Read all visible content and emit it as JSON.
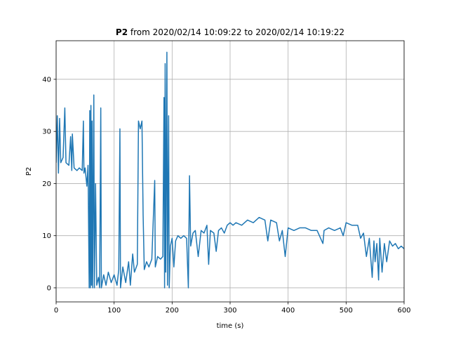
{
  "chart_data": {
    "type": "line",
    "title": {
      "bold": "P2",
      "text": "from 2020/02/14 10:09:22 to 2020/02/14 10:19:22"
    },
    "xlabel": "time (s)",
    "ylabel": "P2",
    "xlim": [
      0,
      600
    ],
    "ylim": [
      -2.7,
      47.4
    ],
    "xticks": [
      0,
      100,
      200,
      300,
      400,
      500,
      600
    ],
    "yticks": [
      0,
      10,
      20,
      30,
      40
    ],
    "grid": true,
    "series": [
      {
        "name": "P2",
        "color": "#1f77b4",
        "x": [
          0,
          2,
          4,
          6,
          8,
          12,
          15,
          17,
          22,
          25,
          27,
          28,
          31,
          36,
          40,
          45,
          47,
          48,
          50,
          53,
          55,
          57,
          58,
          59,
          60,
          61,
          62,
          63,
          65,
          66,
          68,
          70,
          73,
          75,
          77,
          78,
          82,
          86,
          90,
          95,
          100,
          105,
          108,
          110,
          111,
          115,
          120,
          125,
          128,
          132,
          135,
          140,
          142,
          145,
          148,
          150,
          152,
          156,
          160,
          165,
          170,
          171,
          175,
          180,
          184,
          186,
          187,
          188,
          189,
          191,
          192,
          194,
          195,
          197,
          200,
          203,
          206,
          210,
          215,
          220,
          225,
          228,
          230,
          232,
          236,
          240,
          245,
          250,
          255,
          260,
          263,
          266,
          272,
          276,
          280,
          285,
          290,
          295,
          300,
          305,
          310,
          320,
          330,
          340,
          350,
          360,
          365,
          370,
          380,
          385,
          390,
          395,
          400,
          410,
          420,
          430,
          440,
          450,
          460,
          462,
          470,
          480,
          490,
          495,
          500,
          510,
          520,
          525,
          530,
          535,
          540,
          545,
          548,
          550,
          553,
          556,
          558,
          562,
          566,
          570,
          575,
          580,
          585,
          590,
          595,
          600
        ],
        "values": [
          24,
          33,
          22,
          32.5,
          24,
          25,
          34.5,
          24,
          23.5,
          29,
          22.5,
          29.5,
          23,
          22.5,
          23,
          22.5,
          32,
          22,
          23,
          19.5,
          23.5,
          0,
          34,
          0,
          35,
          0.5,
          32,
          0,
          37,
          0,
          20,
          0.5,
          2,
          0,
          34.5,
          0,
          2.5,
          0.5,
          3,
          1,
          2.5,
          0.5,
          3.5,
          30.5,
          0,
          4,
          1,
          5,
          0.5,
          6.5,
          3,
          4.5,
          32,
          30.5,
          32,
          14,
          3.5,
          5,
          4,
          5.5,
          20.6,
          4,
          6,
          5.5,
          6,
          36.5,
          0,
          43,
          3,
          45.2,
          0.5,
          33,
          0,
          8,
          9.5,
          4,
          9,
          10,
          9.5,
          10,
          9.5,
          0,
          21.5,
          8,
          10.5,
          11,
          6,
          11,
          10.5,
          12,
          4.5,
          11,
          10.5,
          7,
          11,
          11.5,
          10.5,
          12,
          12.5,
          12,
          12.5,
          12,
          13,
          12.5,
          13.5,
          13,
          9,
          13,
          12.5,
          9,
          11,
          6,
          11.5,
          11,
          11.5,
          11.5,
          11,
          11,
          8.5,
          11,
          11.5,
          11,
          11.5,
          10,
          12.5,
          12,
          12,
          9.5,
          10.5,
          6,
          9.5,
          2,
          9,
          5,
          8.5,
          1.5,
          9.5,
          3,
          8.5,
          5,
          9,
          8,
          8.5,
          7.5,
          8,
          7.5
        ]
      }
    ]
  }
}
